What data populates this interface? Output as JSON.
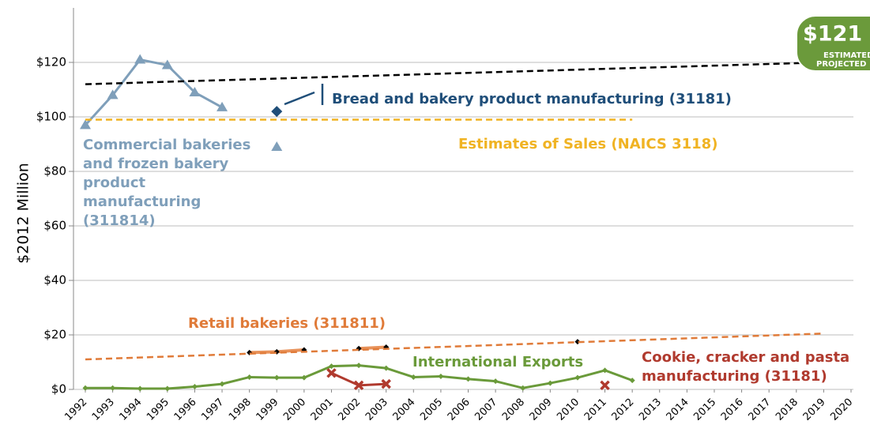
{
  "chart_data": {
    "type": "line",
    "ylabel": "$2012 Million",
    "xlim": [
      1992,
      2020
    ],
    "xticks": [
      1992,
      1993,
      1994,
      1995,
      1996,
      1997,
      1998,
      1999,
      2000,
      2001,
      2002,
      2003,
      2004,
      2005,
      2006,
      2007,
      2008,
      2009,
      2010,
      2011,
      2012,
      2013,
      2014,
      2015,
      2016,
      2017,
      2018,
      2019,
      2020
    ],
    "ylim": [
      0,
      140
    ],
    "yticks": [
      {
        "value": 0,
        "label": "$0"
      },
      {
        "value": 20,
        "label": "$20"
      },
      {
        "value": 40,
        "label": "$40"
      },
      {
        "value": 60,
        "label": "$60"
      },
      {
        "value": 80,
        "label": "$80"
      },
      {
        "value": 100,
        "label": "$100"
      },
      {
        "value": 120,
        "label": "$120"
      }
    ],
    "grid": true,
    "series": [
      {
        "name": "Commercial bakeries and frozen bakery product manufacturing (311814)",
        "color": "#7f9fba",
        "marker": "triangle",
        "x": [
          1992,
          1993,
          1994,
          1995,
          1996,
          1997,
          1998,
          1999
        ],
        "values": [
          97,
          108,
          121,
          119,
          109,
          103.5,
          null,
          89
        ]
      },
      {
        "name": "Bread and bakery product manufacturing (31181)",
        "color": "#1f4e79",
        "marker": "diamond",
        "x": [
          1999
        ],
        "values": [
          102
        ]
      },
      {
        "name": "Estimates of Sales (NAICS 3118)",
        "color": "#f0b323",
        "dash": true,
        "x": [
          1992,
          2012
        ],
        "values": [
          99,
          99
        ]
      },
      {
        "color": "#000000",
        "dash": true,
        "x": [
          1992,
          2019
        ],
        "values": [
          112,
          120
        ]
      },
      {
        "name": "Retail bakeries (311811)",
        "color": "#e8925a",
        "marker": "diamond",
        "marker_color": "#000000",
        "x": [
          1998,
          1999,
          2000,
          2001,
          2002,
          2003,
          2004,
          2010
        ],
        "values": [
          13.5,
          13.8,
          14.5,
          null,
          15,
          15.5,
          null,
          17.5
        ]
      },
      {
        "color": "#e07b39",
        "dash": true,
        "x": [
          1992,
          2019
        ],
        "values": [
          11,
          20.5
        ]
      },
      {
        "name": "International Exports",
        "color": "#6a9a3a",
        "marker": "diamond",
        "x": [
          1992,
          1993,
          1994,
          1995,
          1996,
          1997,
          1998,
          1999,
          2000,
          2001,
          2002,
          2003,
          2004,
          2005,
          2006,
          2007,
          2008,
          2009,
          2010,
          2011,
          2012
        ],
        "values": [
          0.5,
          0.5,
          0.3,
          0.3,
          1,
          2,
          4.5,
          4.3,
          4.3,
          8.5,
          8.8,
          7.8,
          4.5,
          4.8,
          3.8,
          3,
          0.5,
          2.3,
          4.3,
          7,
          3.3
        ]
      },
      {
        "name": "Cookie, cracker and pasta manufacturing (31181)",
        "color": "#b03a2e",
        "marker": "x",
        "x": [
          2001,
          2002,
          2003,
          2004,
          2011
        ],
        "values": [
          6,
          1.5,
          2,
          null,
          1.5
        ]
      }
    ],
    "annotations": [
      "$121",
      "ESTIMATED",
      "PROJECTED"
    ]
  }
}
